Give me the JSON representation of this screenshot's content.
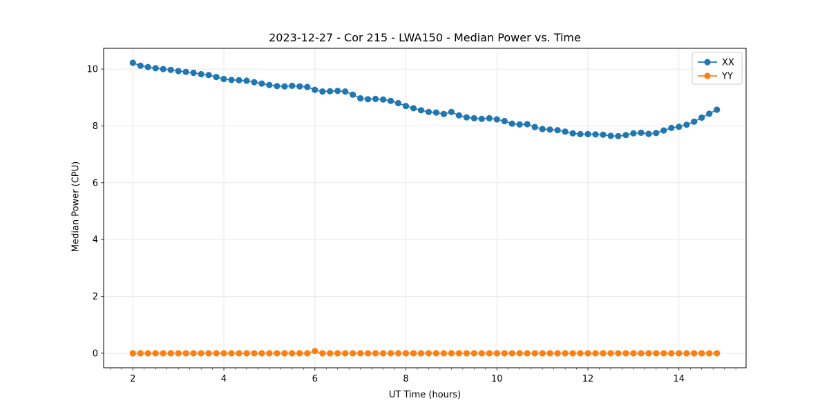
{
  "chart_data": {
    "type": "line",
    "title": "2023-12-27 - Cor 215 - LWA150 - Median Power vs. Time",
    "xlabel": "UT Time (hours)",
    "ylabel": "Median Power (CPU)",
    "xlim": [
      1.358,
      15.476
    ],
    "ylim": [
      -0.511,
      10.731
    ],
    "xticks": [
      2,
      4,
      6,
      8,
      10,
      12,
      14
    ],
    "yticks": [
      0,
      2,
      4,
      6,
      8,
      10
    ],
    "x_minor_step": 0.25,
    "grid": true,
    "legend_position": "upper right",
    "x": [
      2.0,
      2.1667,
      2.3333,
      2.5,
      2.6667,
      2.8333,
      3.0,
      3.1667,
      3.3333,
      3.5,
      3.6667,
      3.8333,
      4.0,
      4.1667,
      4.3333,
      4.5,
      4.6667,
      4.8333,
      5.0,
      5.1667,
      5.3333,
      5.5,
      5.6667,
      5.8333,
      6.0,
      6.1667,
      6.3333,
      6.5,
      6.6667,
      6.8333,
      7.0,
      7.1667,
      7.3333,
      7.5,
      7.6667,
      7.8333,
      8.0,
      8.1667,
      8.3333,
      8.5,
      8.6667,
      8.8333,
      9.0,
      9.1667,
      9.3333,
      9.5,
      9.6667,
      9.8333,
      10.0,
      10.1667,
      10.3333,
      10.5,
      10.6667,
      10.8333,
      11.0,
      11.1667,
      11.3333,
      11.5,
      11.6667,
      11.8333,
      12.0,
      12.1667,
      12.3333,
      12.5,
      12.6667,
      12.8333,
      13.0,
      13.1667,
      13.3333,
      13.5,
      13.6667,
      13.8333,
      14.0,
      14.1667,
      14.3333,
      14.5,
      14.6667,
      14.8333
    ],
    "series": [
      {
        "name": "XX",
        "color": "#1f77b4",
        "values": [
          10.22,
          10.12,
          10.07,
          10.03,
          10.0,
          9.97,
          9.93,
          9.9,
          9.87,
          9.82,
          9.79,
          9.72,
          9.65,
          9.62,
          9.61,
          9.59,
          9.54,
          9.49,
          9.44,
          9.4,
          9.39,
          9.41,
          9.39,
          9.37,
          9.27,
          9.21,
          9.22,
          9.23,
          9.21,
          9.1,
          8.97,
          8.94,
          8.95,
          8.93,
          8.88,
          8.8,
          8.7,
          8.62,
          8.55,
          8.49,
          8.47,
          8.42,
          8.49,
          8.37,
          8.3,
          8.27,
          8.25,
          8.27,
          8.23,
          8.17,
          8.08,
          8.05,
          8.06,
          7.96,
          7.89,
          7.87,
          7.85,
          7.8,
          7.74,
          7.71,
          7.71,
          7.7,
          7.69,
          7.65,
          7.64,
          7.68,
          7.74,
          7.76,
          7.72,
          7.75,
          7.84,
          7.93,
          7.97,
          8.04,
          8.15,
          8.29,
          8.43,
          8.57
        ]
      },
      {
        "name": "YY",
        "color": "#ff7f0e",
        "values": [
          0.0,
          0.0,
          0.0,
          0.0,
          0.0,
          0.0,
          0.0,
          0.0,
          0.0,
          0.0,
          0.0,
          0.0,
          0.0,
          0.0,
          0.0,
          0.0,
          0.0,
          0.0,
          0.0,
          0.0,
          0.0,
          0.0,
          0.0,
          0.0,
          0.08,
          0.0,
          0.0,
          0.0,
          0.0,
          0.0,
          0.0,
          0.0,
          0.0,
          0.0,
          0.0,
          0.0,
          0.0,
          0.0,
          0.0,
          0.0,
          0.0,
          0.0,
          0.0,
          0.0,
          0.0,
          0.0,
          0.0,
          0.0,
          0.0,
          0.0,
          0.0,
          0.0,
          0.0,
          0.0,
          0.0,
          0.0,
          0.0,
          0.0,
          0.0,
          0.0,
          0.0,
          0.0,
          0.0,
          0.0,
          0.0,
          0.0,
          0.0,
          0.0,
          0.0,
          0.0,
          0.0,
          0.0,
          0.0,
          0.0,
          0.0,
          0.0,
          0.0,
          0.0
        ]
      }
    ]
  }
}
